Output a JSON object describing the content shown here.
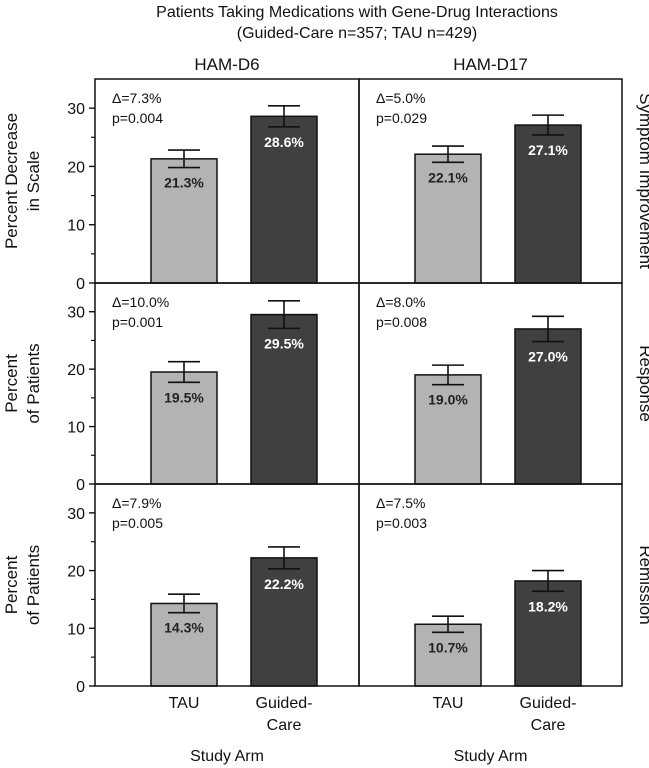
{
  "figure": {
    "title_line1": "Patients Taking Medications with Gene-Drug Interactions",
    "title_line2": "(Guided-Care n=357; TAU n=429)",
    "columns": [
      "HAM-D6",
      "HAM-D17"
    ],
    "rows": [
      "Symptom Improvement",
      "Response",
      "Remission"
    ],
    "ylabels": [
      [
        "Percent Decrease",
        "in Scale"
      ],
      [
        "Percent",
        "of Patients"
      ],
      [
        "Percent",
        "of Patients"
      ]
    ],
    "categories": [
      "TAU",
      "Guided-Care"
    ],
    "category_lines": [
      [
        "TAU"
      ],
      [
        "Guided-",
        "Care"
      ]
    ],
    "xlabel": "Study Arm",
    "yticks": [
      0,
      10,
      20,
      30
    ],
    "colors": {
      "TAU": "#b3b3b3",
      "Guided-Care": "#404040"
    }
  },
  "chart_data": [
    {
      "type": "bar",
      "row": "Symptom Improvement",
      "column": "HAM-D6",
      "categories": [
        "TAU",
        "Guided-Care"
      ],
      "values": [
        21.3,
        28.6
      ],
      "labels": [
        "21.3%",
        "28.6%"
      ],
      "error_low": [
        19.8,
        26.8
      ],
      "error_high": [
        22.8,
        30.4
      ],
      "annotation": [
        "Δ=7.3%",
        "p=0.004"
      ],
      "ylabel": "Percent Decrease in Scale",
      "ylim": [
        0,
        35
      ]
    },
    {
      "type": "bar",
      "row": "Symptom Improvement",
      "column": "HAM-D17",
      "categories": [
        "TAU",
        "Guided-Care"
      ],
      "values": [
        22.1,
        27.1
      ],
      "labels": [
        "22.1%",
        "27.1%"
      ],
      "error_low": [
        20.7,
        25.4
      ],
      "error_high": [
        23.5,
        28.8
      ],
      "annotation": [
        "Δ=5.0%",
        "p=0.029"
      ],
      "ylabel": "",
      "ylim": [
        0,
        35
      ]
    },
    {
      "type": "bar",
      "row": "Response",
      "column": "HAM-D6",
      "categories": [
        "TAU",
        "Guided-Care"
      ],
      "values": [
        19.5,
        29.5
      ],
      "labels": [
        "19.5%",
        "29.5%"
      ],
      "error_low": [
        17.7,
        27.1
      ],
      "error_high": [
        21.3,
        31.9
      ],
      "annotation": [
        "Δ=10.0%",
        "p=0.001"
      ],
      "ylabel": "Percent of Patients",
      "ylim": [
        0,
        35
      ]
    },
    {
      "type": "bar",
      "row": "Response",
      "column": "HAM-D17",
      "categories": [
        "TAU",
        "Guided-Care"
      ],
      "values": [
        19.0,
        27.0
      ],
      "labels": [
        "19.0%",
        "27.0%"
      ],
      "error_low": [
        17.3,
        24.8
      ],
      "error_high": [
        20.7,
        29.2
      ],
      "annotation": [
        "Δ=8.0%",
        "p=0.008"
      ],
      "ylabel": "",
      "ylim": [
        0,
        35
      ]
    },
    {
      "type": "bar",
      "row": "Remission",
      "column": "HAM-D6",
      "categories": [
        "TAU",
        "Guided-Care"
      ],
      "values": [
        14.3,
        22.2
      ],
      "labels": [
        "14.3%",
        "22.2%"
      ],
      "error_low": [
        12.7,
        20.3
      ],
      "error_high": [
        15.9,
        24.1
      ],
      "annotation": [
        "Δ=7.9%",
        "p=0.005"
      ],
      "ylabel": "Percent of Patients",
      "ylim": [
        0,
        35
      ]
    },
    {
      "type": "bar",
      "row": "Remission",
      "column": "HAM-D17",
      "categories": [
        "TAU",
        "Guided-Care"
      ],
      "values": [
        10.7,
        18.2
      ],
      "labels": [
        "10.7%",
        "18.2%"
      ],
      "error_low": [
        9.3,
        16.4
      ],
      "error_high": [
        12.1,
        20.0
      ],
      "annotation": [
        "Δ=7.5%",
        "p=0.003"
      ],
      "ylabel": "",
      "ylim": [
        0,
        35
      ]
    }
  ]
}
